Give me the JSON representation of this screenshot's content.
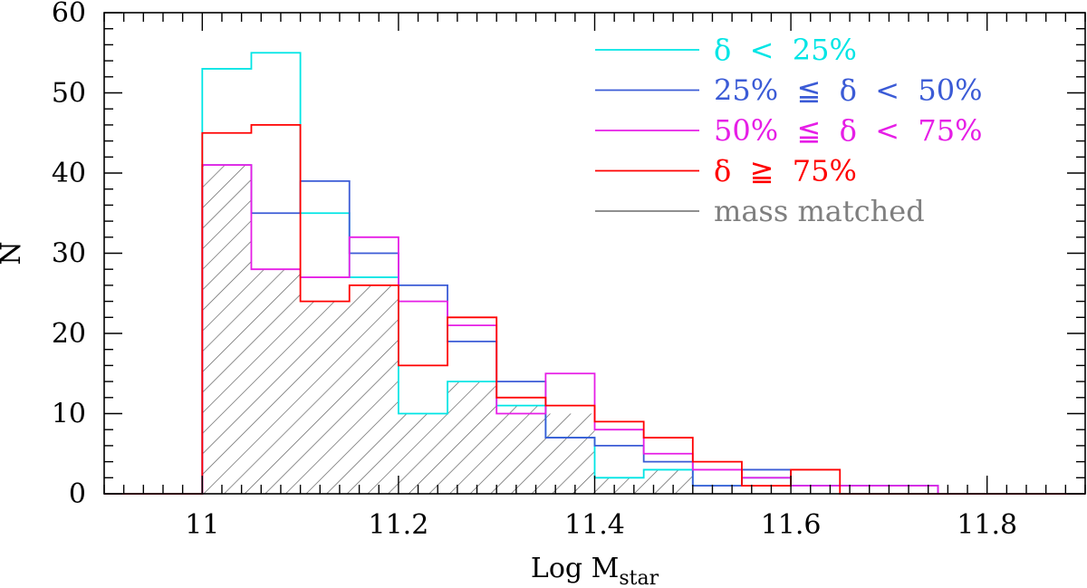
{
  "chart_data": {
    "type": "histogram",
    "xlabel": "Log M",
    "xlabel_sub": "star",
    "ylabel": "N",
    "xlim": [
      10.9,
      11.9
    ],
    "ylim": [
      0,
      60
    ],
    "xticks": [
      11,
      11.2,
      11.4,
      11.6,
      11.8
    ],
    "xtick_labels": [
      "11",
      "11.2",
      "11.4",
      "11.6",
      "11.8"
    ],
    "yticks": [
      0,
      10,
      20,
      30,
      40,
      50,
      60
    ],
    "ytick_labels": [
      "0",
      "10",
      "20",
      "30",
      "40",
      "50",
      "60"
    ],
    "bin_edges": [
      11.0,
      11.05,
      11.1,
      11.15,
      11.2,
      11.25,
      11.3,
      11.35,
      11.4,
      11.45,
      11.5,
      11.55,
      11.6,
      11.65,
      11.7,
      11.75
    ],
    "series": [
      {
        "name": "mass matched",
        "legend_label": "mass matched",
        "style": "hatched",
        "color": "#7f7f7f",
        "values": [
          41,
          28,
          24,
          26,
          10,
          14,
          11,
          10,
          2,
          3,
          0,
          0,
          0,
          0,
          0
        ]
      },
      {
        "name": "delta < 25%",
        "legend_label": "δ  <  25%",
        "style": "step",
        "color": "#00e5e5",
        "values": [
          53,
          55,
          35,
          27,
          10,
          14,
          11,
          7,
          2,
          3,
          1,
          2,
          1,
          1,
          1
        ]
      },
      {
        "name": "25% <= delta < 50%",
        "legend_label": "25%  ≦  δ  <  50%",
        "style": "step",
        "color": "#3b5bd6",
        "values": [
          41,
          35,
          39,
          30,
          26,
          19,
          14,
          7,
          6,
          4,
          1,
          3,
          1,
          1,
          1
        ]
      },
      {
        "name": "50% <= delta < 75%",
        "legend_label": "50%  ≦  δ  <  75%",
        "style": "step",
        "color": "#e61ee6",
        "values": [
          41,
          28,
          27,
          32,
          24,
          21,
          10,
          15,
          8,
          5,
          3,
          2,
          1,
          1,
          1
        ]
      },
      {
        "name": "delta >= 75%",
        "legend_label": "δ  ≧  75%",
        "style": "step",
        "color": "#ff0000",
        "values": [
          45,
          46,
          24,
          26,
          16,
          22,
          12,
          11,
          9,
          7,
          4,
          1,
          3,
          0,
          0
        ]
      }
    ],
    "legend_order": [
      1,
      2,
      3,
      4,
      0
    ],
    "legend_position": "top-right"
  }
}
